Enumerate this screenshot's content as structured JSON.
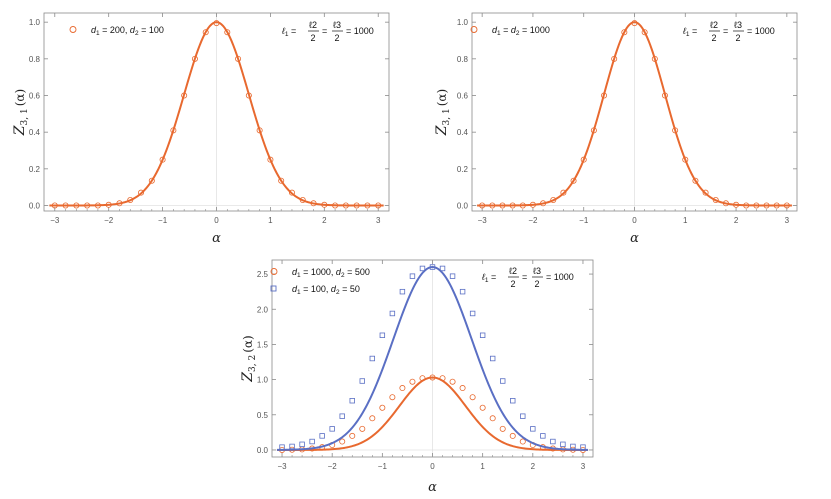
{
  "chart_data": [
    {
      "type": "line",
      "xlabel": "α",
      "ylabel": {
        "base": "Z",
        "sub": "3, 1",
        "arg": "(α)"
      },
      "xlim": [
        -3.2,
        3.2
      ],
      "ylim": [
        -0.03,
        1.05
      ],
      "xticks": [
        "−3",
        "−2",
        "−1",
        "0",
        "1",
        "2",
        "3"
      ],
      "xtick_values": [
        -3,
        -2,
        -1,
        0,
        1,
        2,
        3
      ],
      "yticks": [
        "0.0",
        "0.2",
        "0.4",
        "0.6",
        "0.8",
        "1.0"
      ],
      "ytick_values": [
        0,
        0.2,
        0.4,
        0.6,
        0.8,
        1.0
      ],
      "annotation": {
        "text": "ℓ1 = ℓ2/2 = ℓ3/2 = 1000",
        "l1": "ℓ",
        "s1": "1",
        "eq": "=",
        "num2": "ℓ2",
        "num3": "ℓ3",
        "den": "2",
        "val": "= 1000"
      },
      "series": [
        {
          "name": "d1 = 200, d2 = 100",
          "legend": {
            "d": "d",
            "s1": "1",
            "v1": " = 200, ",
            "s2": "2",
            "v2": " = 100"
          },
          "color": "#E8692F",
          "marker": "circle",
          "curve": {
            "type": "gaussian",
            "amplitude": 1.0,
            "sigma": 0.6
          },
          "x": [
            -3.0,
            -2.8,
            -2.6,
            -2.4,
            -2.2,
            -2.0,
            -1.8,
            -1.6,
            -1.4,
            -1.2,
            -1.0,
            -0.8,
            -0.6,
            -0.4,
            -0.2,
            0.0,
            0.2,
            0.4,
            0.6,
            0.8,
            1.0,
            1.2,
            1.4,
            1.6,
            1.8,
            2.0,
            2.2,
            2.4,
            2.6,
            2.8,
            3.0
          ],
          "y": [
            0.0,
            0.0,
            0.0,
            0.0,
            0.0,
            0.004,
            0.012,
            0.03,
            0.07,
            0.135,
            0.25,
            0.41,
            0.6,
            0.8,
            0.945,
            0.995,
            0.945,
            0.8,
            0.6,
            0.41,
            0.25,
            0.135,
            0.07,
            0.03,
            0.012,
            0.004,
            0.0,
            0.0,
            0.0,
            0.0,
            0.0
          ]
        }
      ]
    },
    {
      "type": "line",
      "xlabel": "α",
      "ylabel": {
        "base": "Z",
        "sub": "3, 1",
        "arg": "(α)"
      },
      "xlim": [
        -3.2,
        3.2
      ],
      "ylim": [
        -0.03,
        1.05
      ],
      "xticks": [
        "−3",
        "−2",
        "−1",
        "0",
        "1",
        "2",
        "3"
      ],
      "xtick_values": [
        -3,
        -2,
        -1,
        0,
        1,
        2,
        3
      ],
      "yticks": [
        "0.0",
        "0.2",
        "0.4",
        "0.6",
        "0.8",
        "1.0"
      ],
      "ytick_values": [
        0,
        0.2,
        0.4,
        0.6,
        0.8,
        1.0
      ],
      "annotation": {
        "text": "ℓ1 = ℓ2/2 = ℓ3/2 = 1000",
        "l1": "ℓ",
        "s1": "1",
        "eq": "=",
        "num2": "ℓ2",
        "num3": "ℓ3",
        "den": "2",
        "val": "= 1000"
      },
      "series": [
        {
          "name": "d1 = d2 = 1000",
          "legend": {
            "d": "d",
            "s1": "1",
            "v1": " = ",
            "s2": "2",
            "v2": " = 1000"
          },
          "color": "#E8692F",
          "marker": "circle",
          "curve": {
            "type": "gaussian",
            "amplitude": 1.0,
            "sigma": 0.6
          },
          "x": [
            -3.0,
            -2.8,
            -2.6,
            -2.4,
            -2.2,
            -2.0,
            -1.8,
            -1.6,
            -1.4,
            -1.2,
            -1.0,
            -0.8,
            -0.6,
            -0.4,
            -0.2,
            0.0,
            0.2,
            0.4,
            0.6,
            0.8,
            1.0,
            1.2,
            1.4,
            1.6,
            1.8,
            2.0,
            2.2,
            2.4,
            2.6,
            2.8,
            3.0
          ],
          "y": [
            0.0,
            0.0,
            0.0,
            0.0,
            0.0,
            0.004,
            0.012,
            0.03,
            0.07,
            0.135,
            0.25,
            0.41,
            0.6,
            0.8,
            0.945,
            0.995,
            0.945,
            0.8,
            0.6,
            0.41,
            0.25,
            0.135,
            0.07,
            0.03,
            0.012,
            0.004,
            0.0,
            0.0,
            0.0,
            0.0,
            0.0
          ]
        }
      ]
    },
    {
      "type": "line",
      "xlabel": "α",
      "ylabel": {
        "base": "Z",
        "sub": "3, 2",
        "arg": "(α)"
      },
      "xlim": [
        -3.2,
        3.2
      ],
      "ylim": [
        -0.1,
        2.7
      ],
      "xticks": [
        "−3",
        "−2",
        "−1",
        "0",
        "1",
        "2",
        "3"
      ],
      "xtick_values": [
        -3,
        -2,
        -1,
        0,
        1,
        2,
        3
      ],
      "yticks": [
        "0.0",
        "0.5",
        "1.0",
        "1.5",
        "2.0",
        "2.5"
      ],
      "ytick_values": [
        0,
        0.5,
        1.0,
        1.5,
        2.0,
        2.5
      ],
      "annotation": {
        "text": "ℓ1 = ℓ2/2 = ℓ3/2 = 1000",
        "l1": "ℓ",
        "s1": "1",
        "eq": "=",
        "num2": "ℓ2",
        "num3": "ℓ3",
        "den": "2",
        "val": "= 1000"
      },
      "series": [
        {
          "name": "d1 = 1000, d2 = 500",
          "legend": {
            "d": "d",
            "s1": "1",
            "v1": " = 1000, ",
            "s2": "2",
            "v2": " = 500"
          },
          "color": "#E8692F",
          "marker": "circle",
          "curve": {
            "type": "gaussian",
            "amplitude": 1.03,
            "sigma": 0.66
          },
          "x": [
            -3.0,
            -2.8,
            -2.6,
            -2.4,
            -2.2,
            -2.0,
            -1.8,
            -1.6,
            -1.4,
            -1.2,
            -1.0,
            -0.8,
            -0.6,
            -0.4,
            -0.2,
            0.0,
            0.2,
            0.4,
            0.6,
            0.8,
            1.0,
            1.2,
            1.4,
            1.6,
            1.8,
            2.0,
            2.2,
            2.4,
            2.6,
            2.8,
            3.0
          ],
          "y": [
            0.0,
            0.003,
            0.008,
            0.02,
            0.04,
            0.07,
            0.12,
            0.2,
            0.3,
            0.45,
            0.6,
            0.75,
            0.88,
            0.97,
            1.02,
            1.03,
            1.02,
            0.97,
            0.88,
            0.75,
            0.6,
            0.45,
            0.3,
            0.2,
            0.12,
            0.07,
            0.04,
            0.02,
            0.008,
            0.003,
            0.0
          ]
        },
        {
          "name": "d1 = 100, d2 = 50",
          "legend": {
            "d": "d",
            "s1": "1",
            "v1": " = 100, ",
            "s2": "2",
            "v2": " = 50"
          },
          "color": "#5A6FC4",
          "marker": "square",
          "curve": {
            "type": "gaussian",
            "amplitude": 2.6,
            "sigma": 0.78
          },
          "x": [
            -3.0,
            -2.8,
            -2.6,
            -2.4,
            -2.2,
            -2.0,
            -1.8,
            -1.6,
            -1.4,
            -1.2,
            -1.0,
            -0.8,
            -0.6,
            -0.4,
            -0.2,
            0.0,
            0.2,
            0.4,
            0.6,
            0.8,
            1.0,
            1.2,
            1.4,
            1.6,
            1.8,
            2.0,
            2.2,
            2.4,
            2.6,
            2.8,
            3.0
          ],
          "y": [
            0.04,
            0.05,
            0.08,
            0.12,
            0.2,
            0.3,
            0.48,
            0.7,
            0.98,
            1.3,
            1.63,
            1.94,
            2.25,
            2.47,
            2.58,
            2.6,
            2.58,
            2.47,
            2.25,
            1.94,
            1.63,
            1.3,
            0.98,
            0.7,
            0.48,
            0.3,
            0.2,
            0.12,
            0.08,
            0.05,
            0.04
          ]
        }
      ]
    }
  ]
}
